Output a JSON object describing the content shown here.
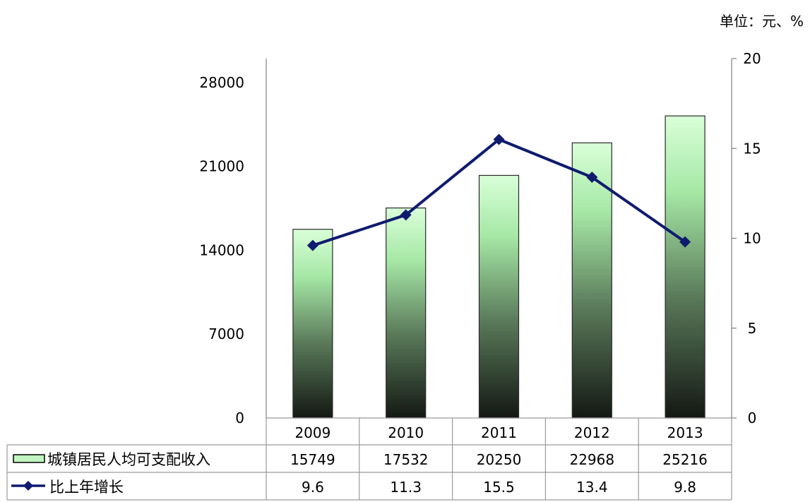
{
  "chart_data": {
    "type": "bar",
    "unit_label": "单位：元、%",
    "categories": [
      "2009",
      "2010",
      "2011",
      "2012",
      "2013"
    ],
    "series": [
      {
        "name": "城镇居民人均可支配收入",
        "type": "bar",
        "axis": "left",
        "values": [
          15749,
          17532,
          20250,
          22968,
          25216
        ]
      },
      {
        "name": "比上年增长",
        "type": "line",
        "axis": "right",
        "values": [
          9.6,
          11.3,
          15.5,
          13.4,
          9.8
        ],
        "color": "#0f1b6e"
      }
    ],
    "y_left": {
      "ticks": [
        "0",
        "7000",
        "14000",
        "21000",
        "28000"
      ],
      "range": [
        0,
        30000
      ]
    },
    "y_right": {
      "ticks": [
        "0",
        "5",
        "10",
        "15",
        "20"
      ],
      "range": [
        0,
        20
      ]
    },
    "data_table": true,
    "grid": false
  }
}
